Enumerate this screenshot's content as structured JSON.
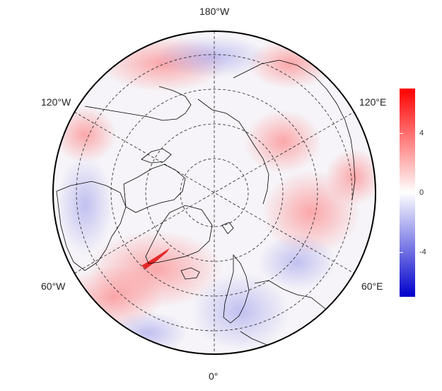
{
  "labels": {
    "top": "180°W",
    "bottom": "0°",
    "upper_left": "120°W",
    "upper_right": "120°E",
    "lower_left": "60°W",
    "lower_right": "60°E"
  },
  "colorbar": {
    "ticks": [
      "4",
      "0",
      "-4"
    ],
    "colors": {
      "max": "#ff0000",
      "mid": "#ffffff",
      "min": "#0000cc"
    },
    "range": [
      -6,
      6
    ]
  }
}
